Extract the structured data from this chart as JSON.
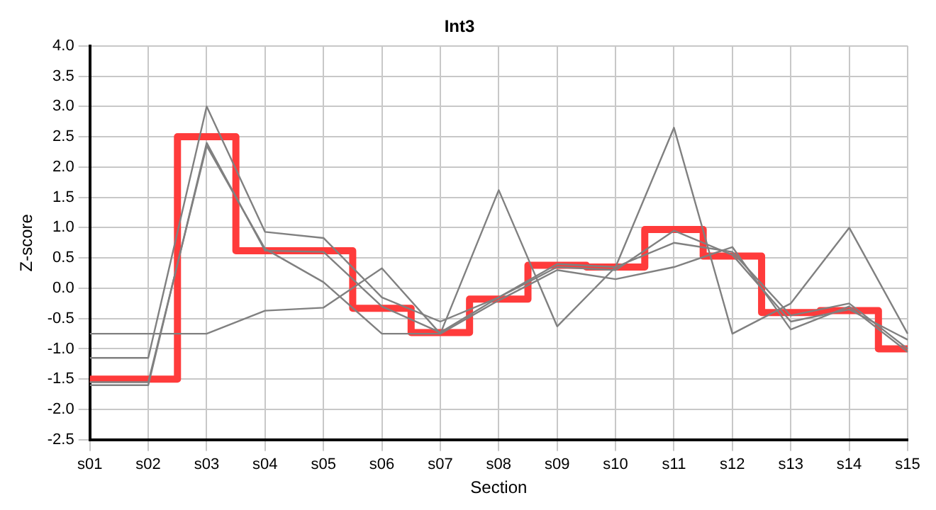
{
  "chart_data": {
    "type": "line",
    "title": "Int3",
    "xlabel": "Section",
    "ylabel": "Z-score",
    "categories": [
      "s01",
      "s02",
      "s03",
      "s04",
      "s05",
      "s06",
      "s07",
      "s08",
      "s09",
      "s10",
      "s11",
      "s12",
      "s13",
      "s14",
      "s15"
    ],
    "series": [
      {
        "color": "#808080",
        "values": [
          -0.75,
          -0.75,
          -0.75,
          -0.37,
          -0.32,
          0.33,
          -0.75,
          1.62,
          -0.63,
          0.35,
          2.65,
          -0.75,
          -0.25,
          1.0,
          -0.75
        ]
      },
      {
        "color": "#808080",
        "values": [
          -1.15,
          -1.15,
          3.0,
          0.93,
          0.83,
          -0.15,
          -0.55,
          -0.15,
          0.35,
          0.3,
          0.95,
          0.55,
          -0.55,
          -0.35,
          -0.85
        ]
      },
      {
        "color": "#808080",
        "values": [
          -1.6,
          -1.6,
          2.4,
          0.62,
          0.6,
          -0.3,
          -0.73,
          -0.15,
          0.4,
          0.35,
          0.75,
          0.6,
          -0.45,
          -0.25,
          -1.0
        ]
      },
      {
        "color": "#808080",
        "values": [
          -1.55,
          -1.55,
          2.35,
          0.65,
          0.1,
          -0.75,
          -0.75,
          -0.2,
          0.3,
          0.15,
          0.35,
          0.68,
          -0.68,
          -0.3,
          -1.05
        ]
      },
      {
        "type": "step",
        "color": "#ff3b3b",
        "values": [
          -1.5,
          -1.5,
          2.5,
          0.62,
          0.62,
          -0.33,
          -0.73,
          -0.18,
          0.38,
          0.35,
          0.97,
          0.53,
          -0.4,
          -0.37,
          -1.0
        ]
      }
    ],
    "ylim": [
      -2.5,
      4.0
    ],
    "yticks": [
      {
        "value": -2.5,
        "label": "-2.5"
      },
      {
        "value": -2.0,
        "label": "-2.0"
      },
      {
        "value": -1.5,
        "label": "-1.5"
      },
      {
        "value": -1.0,
        "label": "-1.0"
      },
      {
        "value": -0.5,
        "label": "-0.5"
      },
      {
        "value": 0,
        "label": "0.0"
      },
      {
        "value": 0.5,
        "label": "0.5"
      },
      {
        "value": 1.0,
        "label": "1.0"
      },
      {
        "value": 1.5,
        "label": "1.5"
      },
      {
        "value": 2.0,
        "label": "2.0"
      },
      {
        "value": 2.5,
        "label": "2.5"
      },
      {
        "value": 3.0,
        "label": "3.0"
      },
      {
        "value": 3.5,
        "label": "3.5"
      },
      {
        "value": 4.0,
        "label": "4.0"
      }
    ],
    "grid": true,
    "marker": "none"
  }
}
